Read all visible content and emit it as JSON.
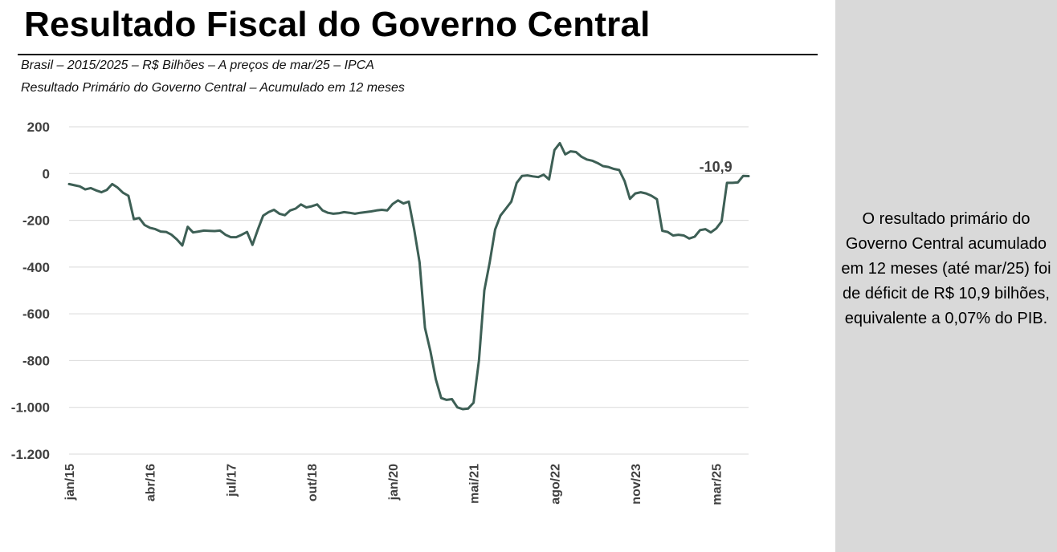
{
  "header": {
    "title": "Resultado Fiscal do Governo Central",
    "subtitle_1": "Brasil – 2015/2025 – R$ Bilhões – A preços de mar/25 – IPCA",
    "subtitle_2": "Resultado Primário do Governo Central – Acumulado em 12 meses"
  },
  "sidebar": {
    "text": "O resultado primário do Governo Central acumulado em 12 meses (até mar/25) foi de déficit de R$ 10,9 bilhões, equivalente a 0,07% do PIB."
  },
  "colors": {
    "line": "#3d5f55",
    "grid": "#d9d9d9",
    "sidebar_bg": "#d9d9d9"
  },
  "chart_data": {
    "type": "line",
    "title": "Resultado Primário do Governo Central – Acumulado em 12 meses",
    "xlabel": "",
    "ylabel": "",
    "ylim": [
      -1200,
      200
    ],
    "yticks": [
      200,
      0,
      -200,
      -400,
      -600,
      -800,
      -1000,
      -1200
    ],
    "ytick_labels": [
      "200",
      "0",
      "-200",
      "-400",
      "-600",
      "-800",
      "-1.000",
      "-1.200"
    ],
    "xticks": [
      {
        "index": 0,
        "label": "jan/15"
      },
      {
        "index": 15,
        "label": "abr/16"
      },
      {
        "index": 30,
        "label": "jul/17"
      },
      {
        "index": 45,
        "label": "out/18"
      },
      {
        "index": 60,
        "label": "jan/20"
      },
      {
        "index": 75,
        "label": "mai/21"
      },
      {
        "index": 90,
        "label": "ago/22"
      },
      {
        "index": 105,
        "label": "nov/23"
      },
      {
        "index": 120,
        "label": "mar/25"
      }
    ],
    "grid": true,
    "legend": "none",
    "annotation": {
      "index": 122,
      "label": "-10,9"
    },
    "series": [
      {
        "values": [
          -45,
          -50,
          -55,
          -68,
          -62,
          -72,
          -80,
          -70,
          -45,
          -60,
          -82,
          -95,
          -195,
          -190,
          -220,
          -232,
          -238,
          -248,
          -250,
          -262,
          -282,
          -308,
          -228,
          -252,
          -248,
          -244,
          -245,
          -246,
          -244,
          -262,
          -272,
          -272,
          -262,
          -250,
          -305,
          -240,
          -180,
          -165,
          -155,
          -172,
          -178,
          -158,
          -150,
          -132,
          -145,
          -140,
          -132,
          -158,
          -168,
          -172,
          -170,
          -165,
          -168,
          -172,
          -168,
          -165,
          -162,
          -158,
          -155,
          -158,
          -130,
          -115,
          -128,
          -120,
          -240,
          -380,
          -660,
          -760,
          -880,
          -960,
          -968,
          -965,
          -1000,
          -1008,
          -1005,
          -980,
          -800,
          -500,
          -380,
          -240,
          -180,
          -150,
          -120,
          -40,
          -10,
          -8,
          -12,
          -15,
          -5,
          -25,
          100,
          130,
          82,
          95,
          92,
          72,
          60,
          55,
          45,
          32,
          28,
          20,
          15,
          -32,
          -108,
          -85,
          -80,
          -85,
          -95,
          -110,
          -245,
          -250,
          -265,
          -262,
          -265,
          -278,
          -270,
          -242,
          -238,
          -252,
          -235,
          -205,
          -40,
          -40,
          -38,
          -10,
          -10.9
        ]
      }
    ]
  }
}
